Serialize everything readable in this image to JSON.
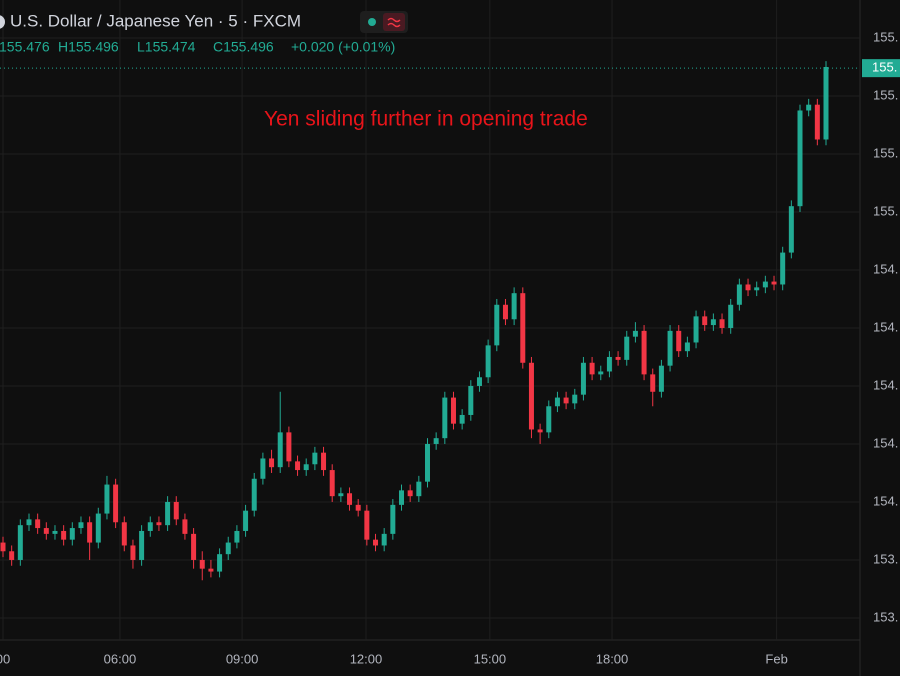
{
  "chart_data": {
    "type": "candlestick",
    "title": "U.S. Dollar / Japanese Yen · 5 · FXCM",
    "ohlc_open": "155.476",
    "ohlc_high": "H155.496",
    "ohlc_low": "L155.474",
    "ohlc_close": "C155.496",
    "ohlc_change": "+0.020 (+0.01%)",
    "annotation": "Yen sliding further in opening trade",
    "up_color": "#22ab94",
    "down_color": "#f23645",
    "grid": true,
    "ylim": [
      153.524,
      155.731
    ],
    "yticks": [
      {
        "value": 155.6,
        "label": "155."
      },
      {
        "value": 155.4,
        "label": "155."
      },
      {
        "value": 155.2,
        "label": "155."
      },
      {
        "value": 155.0,
        "label": "155."
      },
      {
        "value": 154.8,
        "label": "154."
      },
      {
        "value": 154.6,
        "label": "154."
      },
      {
        "value": 154.4,
        "label": "154."
      },
      {
        "value": 154.2,
        "label": "154."
      },
      {
        "value": 154.0,
        "label": "154."
      },
      {
        "value": 153.8,
        "label": "153."
      },
      {
        "value": 153.6,
        "label": "153."
      }
    ],
    "last_price": {
      "value": 155.496,
      "label": "155."
    },
    "xticks": [
      {
        "value": 0,
        "label": "00"
      },
      {
        "value": 13.5,
        "label": "06:00"
      },
      {
        "value": 27.6,
        "label": "09:00"
      },
      {
        "value": 41.9,
        "label": "12:00"
      },
      {
        "value": 56.2,
        "label": "15:00"
      },
      {
        "value": 70.3,
        "label": "18:00"
      },
      {
        "value": 89.3,
        "label": "Feb"
      }
    ],
    "open": [
      153.86,
      153.83,
      153.8,
      153.92,
      153.94,
      153.91,
      153.89,
      153.9,
      153.87,
      153.91,
      153.93,
      153.86,
      153.96,
      154.06,
      153.93,
      153.85,
      153.8,
      153.9,
      153.93,
      153.92,
      154.0,
      153.94,
      153.89,
      153.8,
      153.77,
      153.76,
      153.82,
      153.86,
      153.9,
      153.97,
      154.08,
      154.15,
      154.12,
      154.24,
      154.14,
      154.11,
      154.13,
      154.17,
      154.11,
      154.02,
      154.03,
      153.99,
      153.97,
      153.87,
      153.85,
      153.89,
      153.99,
      154.04,
      154.02,
      154.07,
      154.2,
      154.22,
      154.36,
      154.27,
      154.3,
      154.4,
      154.43,
      154.54,
      154.68,
      154.63,
      154.72,
      154.48,
      154.25,
      154.24,
      154.33,
      154.36,
      154.34,
      154.37,
      154.48,
      154.44,
      154.45,
      154.5,
      154.49,
      154.57,
      154.59,
      154.44,
      154.38,
      154.47,
      154.59,
      154.52,
      154.55,
      154.64,
      154.61,
      154.63,
      154.6,
      154.68,
      154.75,
      154.73,
      154.74,
      154.76,
      154.75,
      154.86,
      155.02,
      155.35,
      155.37,
      155.25
    ],
    "high": [
      153.88,
      153.85,
      153.94,
      153.96,
      153.96,
      153.93,
      153.92,
      153.92,
      153.93,
      153.95,
      153.95,
      153.98,
      154.09,
      154.08,
      153.95,
      153.87,
      153.92,
      153.95,
      153.95,
      154.02,
      154.02,
      153.96,
      153.91,
      153.83,
      153.8,
      153.84,
      153.88,
      153.92,
      153.99,
      154.1,
      154.17,
      154.18,
      154.38,
      154.26,
      154.16,
      154.15,
      154.19,
      154.19,
      154.13,
      154.05,
      154.05,
      154.01,
      153.99,
      153.89,
      153.91,
      154.01,
      154.06,
      154.06,
      154.09,
      154.22,
      154.24,
      154.38,
      154.38,
      154.32,
      154.42,
      154.45,
      154.56,
      154.7,
      154.7,
      154.74,
      154.74,
      154.5,
      154.27,
      154.35,
      154.38,
      154.38,
      154.39,
      154.5,
      154.5,
      154.47,
      154.52,
      154.52,
      154.59,
      154.62,
      154.61,
      154.46,
      154.49,
      154.61,
      154.61,
      154.57,
      154.66,
      154.66,
      154.65,
      154.65,
      154.7,
      154.77,
      154.77,
      154.76,
      154.78,
      154.78,
      154.88,
      155.04,
      155.37,
      155.39,
      155.39,
      155.52
    ],
    "low": [
      153.81,
      153.78,
      153.78,
      153.9,
      153.89,
      153.87,
      153.87,
      153.85,
      153.85,
      153.89,
      153.8,
      153.84,
      153.94,
      153.91,
      153.83,
      153.77,
      153.78,
      153.88,
      153.9,
      153.9,
      153.92,
      153.87,
      153.77,
      153.73,
      153.74,
      153.74,
      153.8,
      153.84,
      153.88,
      153.95,
      154.06,
      154.1,
      154.1,
      154.12,
      154.09,
      154.09,
      154.11,
      154.09,
      154.0,
      154.0,
      153.97,
      153.95,
      153.85,
      153.83,
      153.83,
      153.87,
      153.97,
      154.0,
      154.0,
      154.05,
      154.18,
      154.2,
      154.25,
      154.25,
      154.28,
      154.38,
      154.41,
      154.52,
      154.61,
      154.61,
      154.46,
      154.22,
      154.2,
      154.22,
      154.31,
      154.32,
      154.32,
      154.35,
      154.42,
      154.42,
      154.43,
      154.47,
      154.47,
      154.55,
      154.42,
      154.33,
      154.36,
      154.45,
      154.5,
      154.5,
      154.53,
      154.59,
      154.59,
      154.58,
      154.58,
      154.66,
      154.71,
      154.71,
      154.72,
      154.73,
      154.73,
      154.84,
      155.0,
      155.33,
      155.23,
      155.23
    ],
    "close": [
      153.83,
      153.8,
      153.92,
      153.94,
      153.91,
      153.89,
      153.9,
      153.87,
      153.91,
      153.93,
      153.86,
      153.96,
      154.06,
      153.93,
      153.85,
      153.8,
      153.9,
      153.93,
      153.92,
      154.0,
      153.94,
      153.89,
      153.8,
      153.77,
      153.76,
      153.82,
      153.86,
      153.9,
      153.97,
      154.08,
      154.15,
      154.12,
      154.24,
      154.14,
      154.11,
      154.13,
      154.17,
      154.11,
      154.02,
      154.03,
      153.99,
      153.97,
      153.87,
      153.85,
      153.89,
      153.99,
      154.04,
      154.02,
      154.07,
      154.2,
      154.22,
      154.36,
      154.27,
      154.3,
      154.4,
      154.43,
      154.54,
      154.68,
      154.63,
      154.72,
      154.48,
      154.25,
      154.24,
      154.33,
      154.36,
      154.34,
      154.37,
      154.48,
      154.44,
      154.45,
      154.5,
      154.49,
      154.57,
      154.59,
      154.44,
      154.38,
      154.47,
      154.59,
      154.52,
      154.55,
      154.64,
      154.61,
      154.63,
      154.6,
      154.68,
      154.75,
      154.73,
      154.74,
      154.76,
      154.75,
      154.86,
      155.02,
      155.35,
      155.37,
      155.25,
      155.5
    ]
  }
}
